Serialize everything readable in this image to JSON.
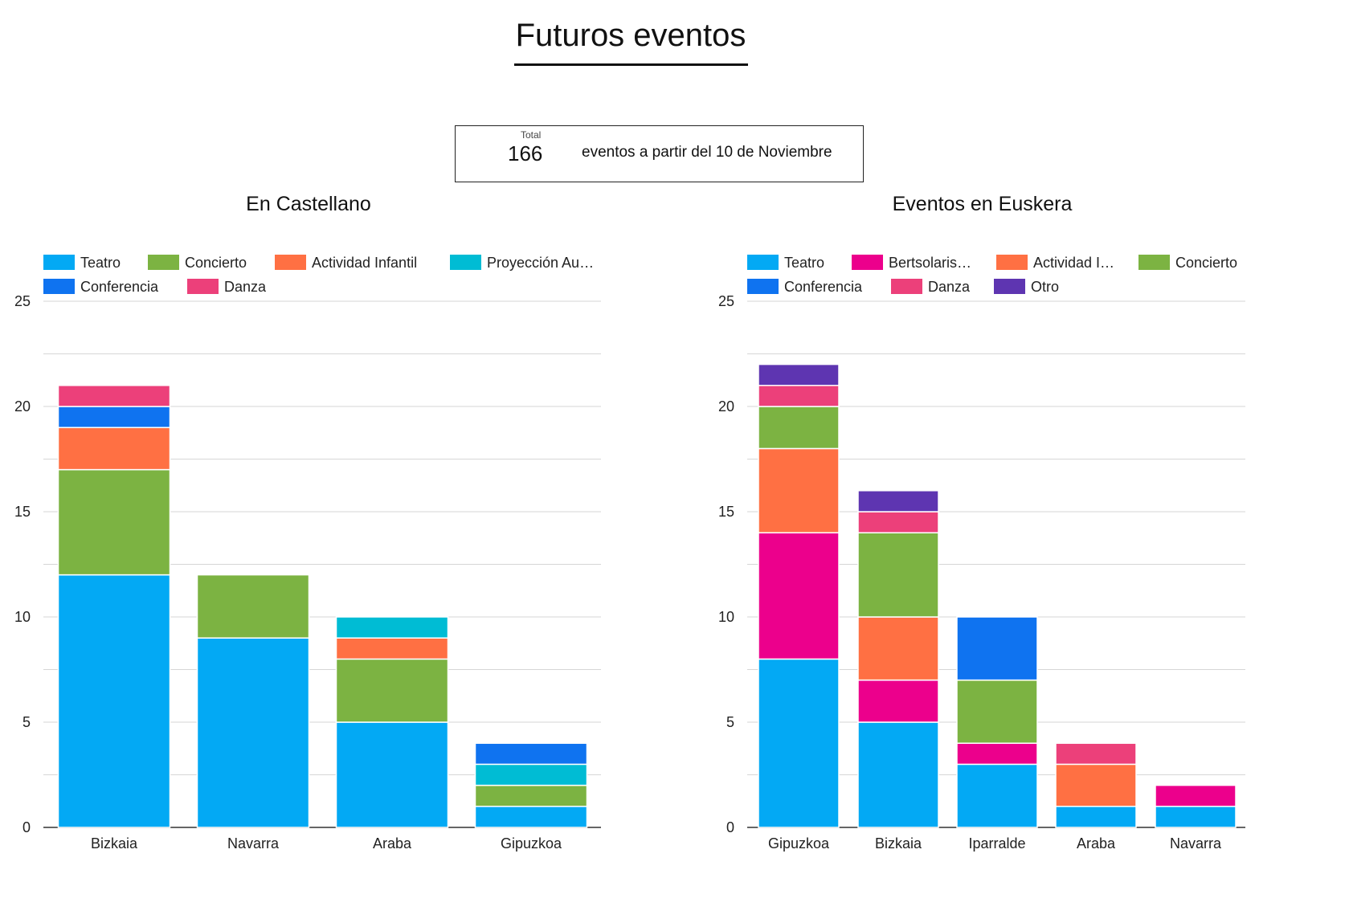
{
  "page_title": "Futuros eventos",
  "scorecard": {
    "label": "Total",
    "value": "166",
    "description": "eventos a partir del 10 de Noviembre"
  },
  "colors": {
    "Teatro": "#03a9f4",
    "Concierto": "#7cb342",
    "Actividad Infantil": "#ff7043",
    "Proyección Audiovisual": "#00bcd4",
    "Conferencia": "#0f73f0",
    "Danza": "#ec407a",
    "Bertsolarismo": "#ec008c",
    "Otro": "#5e35b1"
  },
  "chart_data": [
    {
      "type": "bar",
      "stacked": true,
      "title": "En Castellano",
      "categories": [
        "Bizkaia",
        "Navarra",
        "Araba",
        "Gipuzkoa"
      ],
      "legend_labels": [
        "Teatro",
        "Concierto",
        "Actividad Infantil",
        "Proyección Au…",
        "Conferencia",
        "Danza"
      ],
      "series": [
        {
          "name": "Teatro",
          "values": [
            12,
            9,
            5,
            1
          ]
        },
        {
          "name": "Concierto",
          "values": [
            5,
            3,
            3,
            1
          ]
        },
        {
          "name": "Actividad Infantil",
          "values": [
            2,
            0,
            1,
            0
          ]
        },
        {
          "name": "Proyección Audiovisual",
          "values": [
            0,
            0,
            1,
            1
          ]
        },
        {
          "name": "Conferencia",
          "values": [
            1,
            0,
            0,
            1
          ]
        },
        {
          "name": "Danza",
          "values": [
            1,
            0,
            0,
            0
          ]
        }
      ],
      "ylim": [
        0,
        25
      ],
      "yticks": [
        0,
        5,
        10,
        15,
        20,
        25
      ],
      "grid": true,
      "legend": "top"
    },
    {
      "type": "bar",
      "stacked": true,
      "title": "Eventos en Euskera",
      "categories": [
        "Gipuzkoa",
        "Bizkaia",
        "Iparralde",
        "Araba",
        "Navarra"
      ],
      "legend_labels": [
        "Teatro",
        "Bertsolaris…",
        "Actividad I…",
        "Concierto",
        "Conferencia",
        "Danza",
        "Otro"
      ],
      "series": [
        {
          "name": "Teatro",
          "values": [
            8,
            5,
            3,
            1,
            1
          ]
        },
        {
          "name": "Bertsolarismo",
          "values": [
            6,
            2,
            1,
            0,
            1
          ]
        },
        {
          "name": "Actividad Infantil",
          "values": [
            4,
            3,
            0,
            2,
            0
          ]
        },
        {
          "name": "Concierto",
          "values": [
            2,
            4,
            3,
            0,
            0
          ]
        },
        {
          "name": "Conferencia",
          "values": [
            0,
            0,
            3,
            0,
            0
          ]
        },
        {
          "name": "Danza",
          "values": [
            1,
            1,
            0,
            1,
            0
          ]
        },
        {
          "name": "Otro",
          "values": [
            1,
            1,
            0,
            0,
            0
          ]
        }
      ],
      "ylim": [
        0,
        25
      ],
      "yticks": [
        0,
        5,
        10,
        15,
        20,
        25
      ],
      "grid": true,
      "legend": "top"
    }
  ]
}
